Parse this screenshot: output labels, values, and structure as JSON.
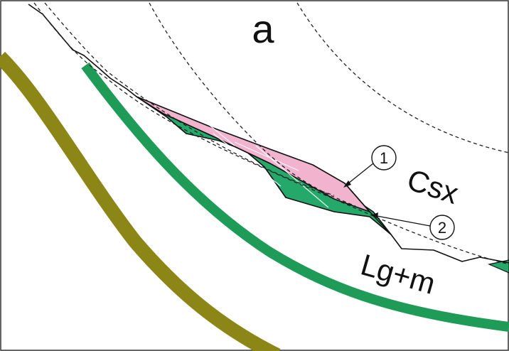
{
  "panel_label": "a",
  "units": {
    "upper": "Csx",
    "lower": "Lg+m"
  },
  "callouts": [
    {
      "number": "1",
      "target": "pink-layer"
    },
    {
      "number": "2",
      "target": "green-layer"
    }
  ],
  "colors": {
    "pink_layer": "#f2b3cf",
    "green_layer": "#24a96b",
    "green_band": "#1e9b57",
    "olive_band": "#8b8616",
    "outline": "#111111",
    "dashed": "#222222",
    "frame": "#333333"
  }
}
